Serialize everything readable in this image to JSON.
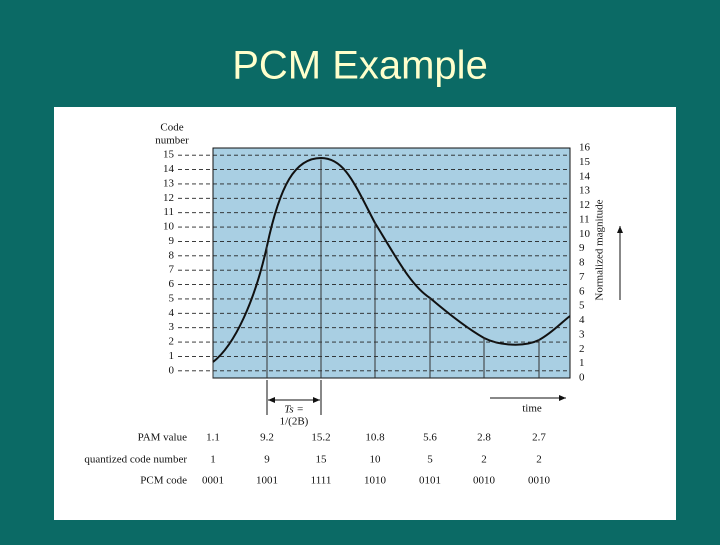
{
  "title": "PCM Example",
  "left_axis": {
    "label_lines": [
      "Code",
      "number"
    ],
    "labels": [
      15,
      14,
      13,
      12,
      11,
      10,
      9,
      8,
      7,
      6,
      5,
      4,
      3,
      2,
      1,
      0
    ]
  },
  "right_axis": {
    "label": "Normalized magnitude",
    "labels": [
      16,
      15,
      14,
      13,
      12,
      11,
      10,
      9,
      8,
      7,
      6,
      5,
      4,
      3,
      2,
      1,
      0
    ]
  },
  "ts_label": [
    "Ts =",
    "1/(2B)"
  ],
  "time_label": "time",
  "table": {
    "row_labels": [
      "PAM value",
      "quantized code number",
      "PCM code"
    ],
    "rows": [
      [
        1.1,
        9.2,
        15.2,
        10.8,
        5.6,
        2.8,
        2.7
      ],
      [
        1,
        9,
        15,
        10,
        5,
        2,
        2
      ],
      [
        "0001",
        "1001",
        "1111",
        "1010",
        "0101",
        "0010",
        "0010"
      ]
    ]
  }
}
